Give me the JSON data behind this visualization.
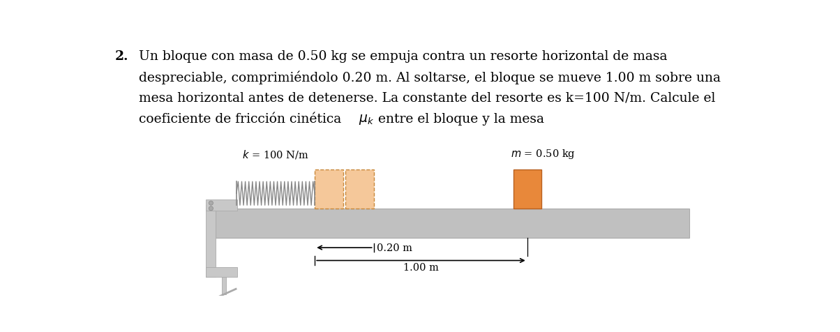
{
  "title_number": "2.",
  "text_lines": [
    "Un bloque con masa de 0.50 kg se empuja contra un resorte horizontal de masa",
    "despreciable, comprimiéndolo 0.20 m. Al soltarse, el bloque se mueve 1.00 m sobre una",
    "mesa horizontal antes de detenerse. La constante del resorte es k=100 N/m. Calcule el",
    "coeficiente de fricción cinética "
  ],
  "text_line4_end": " entre el bloque y la mesa",
  "label_k": "$k$ = 100 N/m",
  "label_m": "$m$ = 0.50 kg",
  "label_02": "0.20 m",
  "label_10": "1.00 m",
  "block_color_ghost": "#f5c89a",
  "block_color_solid": "#e8883a",
  "block_border_ghost": "#c8883a",
  "table_color": "#c0c0c0",
  "table_edge_color": "#aaaaaa",
  "clamp_color": "#c8c8c8",
  "clamp_edge_color": "#aaaaaa",
  "spring_color": "#888888",
  "text_color": "#000000",
  "bg_color": "#ffffff",
  "text_fontsize": 13.5,
  "label_fontsize": 10.5,
  "dim_fontsize": 10.5
}
